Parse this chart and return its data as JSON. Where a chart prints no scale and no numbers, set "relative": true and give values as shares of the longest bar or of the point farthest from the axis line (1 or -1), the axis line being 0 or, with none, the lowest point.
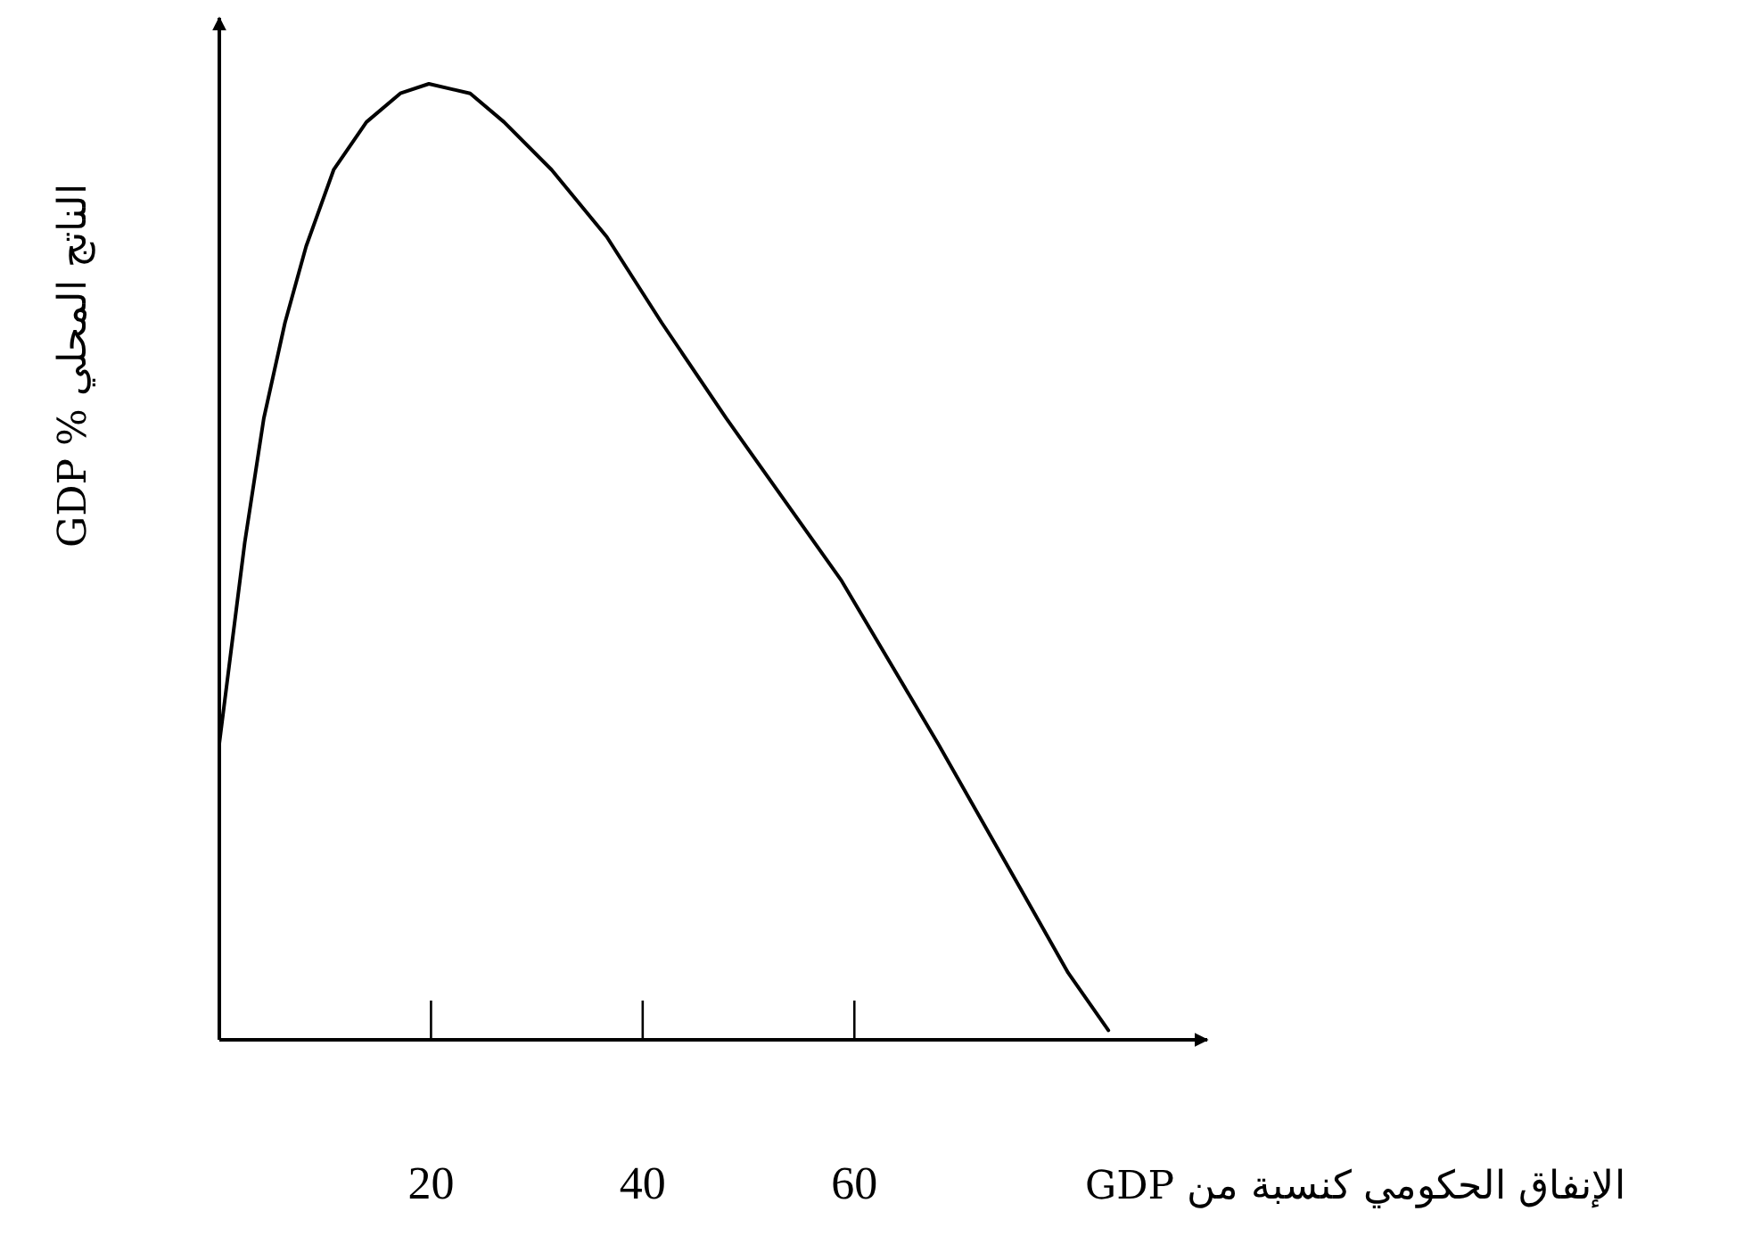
{
  "chart_data": {
    "type": "line",
    "relative": true,
    "xlabel": "الإنفاق الحكومي كنسبة من GDP",
    "ylabel": "الناتج المحلي % GDP",
    "x": [
      0,
      2.4,
      4.2,
      6.2,
      8.2,
      10.8,
      13.9,
      17.1,
      19.8,
      23.7,
      26.9,
      31.4,
      36.6,
      41.8,
      47.9,
      58.8,
      67.9,
      75.6,
      80.2,
      84.0
    ],
    "values": [
      0.31,
      0.52,
      0.65,
      0.75,
      0.83,
      0.91,
      0.96,
      0.99,
      1.0,
      0.99,
      0.96,
      0.91,
      0.84,
      0.75,
      0.65,
      0.48,
      0.31,
      0.16,
      0.07,
      0.01
    ],
    "color": "#000000",
    "xlim": [
      0,
      93
    ],
    "xticks": [
      20,
      40,
      60
    ]
  }
}
